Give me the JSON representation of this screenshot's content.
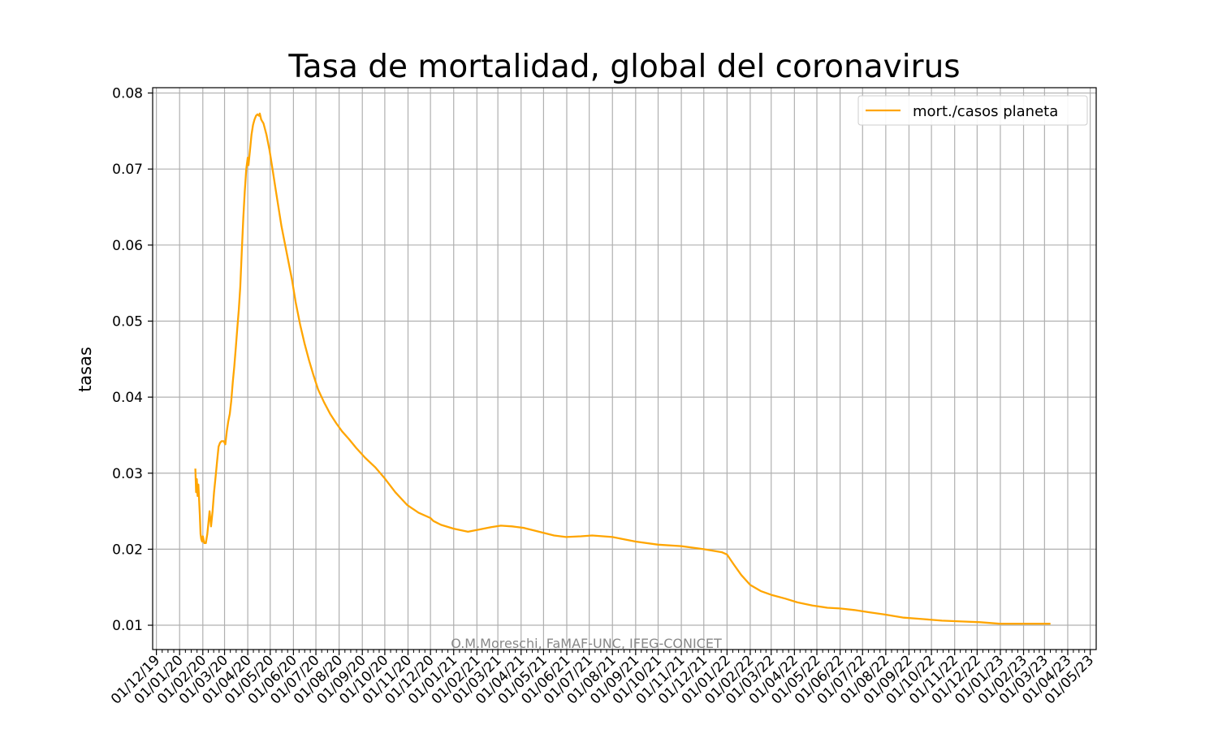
{
  "chart_data": {
    "type": "line",
    "title": "Tasa de mortalidad, global del coronavirus",
    "xlabel": "",
    "ylabel": "tasas",
    "watermark": "O.M.Moreschi, FaMAF-UNC, IFEG-CONICET",
    "grid": true,
    "legend_position": "top-right",
    "x_tick_labels": [
      "01/12/19",
      "01/01/20",
      "01/02/20",
      "01/03/20",
      "01/04/20",
      "01/05/20",
      "01/06/20",
      "01/07/20",
      "01/08/20",
      "01/09/20",
      "01/10/20",
      "01/11/20",
      "01/12/20",
      "01/01/21",
      "01/02/21",
      "01/03/21",
      "01/04/21",
      "01/05/21",
      "01/06/21",
      "01/07/21",
      "01/08/21",
      "01/09/21",
      "01/10/21",
      "01/11/21",
      "01/12/21",
      "01/01/22",
      "01/02/22",
      "01/03/22",
      "01/04/22",
      "01/05/22",
      "01/06/22",
      "01/07/22",
      "01/08/22",
      "01/09/22",
      "01/10/22",
      "01/11/22",
      "01/12/22",
      "01/01/23",
      "01/02/23",
      "01/03/23",
      "01/04/23",
      "01/05/23"
    ],
    "y_ticks": [
      0.01,
      0.02,
      0.03,
      0.04,
      0.05,
      0.06,
      0.07,
      0.08
    ],
    "y_tick_labels": [
      "0.01",
      "0.02",
      "0.03",
      "0.04",
      "0.05",
      "0.06",
      "0.07",
      "0.08"
    ],
    "xlim": [
      "2019-11-26",
      "2023-05-09"
    ],
    "ylim": [
      0.0068,
      0.0807
    ],
    "series": [
      {
        "name": "mort./casos planeta",
        "color": "#ffa500",
        "points": [
          [
            "2020-01-22",
            0.0306
          ],
          [
            "2020-01-23",
            0.0275
          ],
          [
            "2020-01-24",
            0.0292
          ],
          [
            "2020-01-25",
            0.027
          ],
          [
            "2020-01-26",
            0.0285
          ],
          [
            "2020-01-28",
            0.0245
          ],
          [
            "2020-01-29",
            0.022
          ],
          [
            "2020-01-30",
            0.0213
          ],
          [
            "2020-01-31",
            0.021
          ],
          [
            "2020-02-01",
            0.0217
          ],
          [
            "2020-02-03",
            0.0208
          ],
          [
            "2020-02-05",
            0.0208
          ],
          [
            "2020-02-07",
            0.022
          ],
          [
            "2020-02-09",
            0.024
          ],
          [
            "2020-02-10",
            0.025
          ],
          [
            "2020-02-12",
            0.023
          ],
          [
            "2020-02-14",
            0.025
          ],
          [
            "2020-02-16",
            0.0275
          ],
          [
            "2020-02-18",
            0.0295
          ],
          [
            "2020-02-20",
            0.0315
          ],
          [
            "2020-02-22",
            0.0335
          ],
          [
            "2020-02-24",
            0.034
          ],
          [
            "2020-02-26",
            0.0342
          ],
          [
            "2020-02-29",
            0.0342
          ],
          [
            "2020-03-02",
            0.0338
          ],
          [
            "2020-03-04",
            0.0355
          ],
          [
            "2020-03-06",
            0.0368
          ],
          [
            "2020-03-08",
            0.0378
          ],
          [
            "2020-03-10",
            0.0395
          ],
          [
            "2020-03-12",
            0.042
          ],
          [
            "2020-03-14",
            0.044
          ],
          [
            "2020-03-16",
            0.0465
          ],
          [
            "2020-03-18",
            0.049
          ],
          [
            "2020-03-20",
            0.0515
          ],
          [
            "2020-03-22",
            0.0545
          ],
          [
            "2020-03-24",
            0.059
          ],
          [
            "2020-03-26",
            0.0635
          ],
          [
            "2020-03-28",
            0.067
          ],
          [
            "2020-03-30",
            0.07
          ],
          [
            "2020-04-01",
            0.0715
          ],
          [
            "2020-04-02",
            0.0705
          ],
          [
            "2020-04-04",
            0.0725
          ],
          [
            "2020-04-06",
            0.0745
          ],
          [
            "2020-04-08",
            0.0758
          ],
          [
            "2020-04-10",
            0.0765
          ],
          [
            "2020-04-12",
            0.077
          ],
          [
            "2020-04-14",
            0.0772
          ],
          [
            "2020-04-16",
            0.077
          ],
          [
            "2020-04-17",
            0.0773
          ],
          [
            "2020-04-19",
            0.0765
          ],
          [
            "2020-04-22",
            0.076
          ],
          [
            "2020-04-26",
            0.0745
          ],
          [
            "2020-04-30",
            0.0725
          ],
          [
            "2020-05-04",
            0.07
          ],
          [
            "2020-05-08",
            0.0675
          ],
          [
            "2020-05-12",
            0.065
          ],
          [
            "2020-05-16",
            0.0625
          ],
          [
            "2020-05-20",
            0.0605
          ],
          [
            "2020-05-25",
            0.058
          ],
          [
            "2020-05-30",
            0.0555
          ],
          [
            "2020-06-04",
            0.0525
          ],
          [
            "2020-06-10",
            0.0495
          ],
          [
            "2020-06-16",
            0.047
          ],
          [
            "2020-06-22",
            0.0448
          ],
          [
            "2020-06-28",
            0.0428
          ],
          [
            "2020-07-04",
            0.041
          ],
          [
            "2020-07-12",
            0.0393
          ],
          [
            "2020-07-20",
            0.0378
          ],
          [
            "2020-07-28",
            0.0366
          ],
          [
            "2020-08-05",
            0.0355
          ],
          [
            "2020-08-14",
            0.0345
          ],
          [
            "2020-08-24",
            0.0333
          ],
          [
            "2020-09-05",
            0.032
          ],
          [
            "2020-09-18",
            0.0308
          ],
          [
            "2020-10-01",
            0.0293
          ],
          [
            "2020-10-15",
            0.0275
          ],
          [
            "2020-10-31",
            0.0258
          ],
          [
            "2020-11-15",
            0.0248
          ],
          [
            "2020-12-01",
            0.0241
          ],
          [
            "2020-12-05",
            0.0237
          ],
          [
            "2020-12-15",
            0.0232
          ],
          [
            "2021-01-01",
            0.0227
          ],
          [
            "2021-01-20",
            0.0223
          ],
          [
            "2021-02-05",
            0.0226
          ],
          [
            "2021-02-20",
            0.0229
          ],
          [
            "2021-03-05",
            0.0231
          ],
          [
            "2021-03-20",
            0.023
          ],
          [
            "2021-04-05",
            0.0228
          ],
          [
            "2021-04-25",
            0.0223
          ],
          [
            "2021-05-15",
            0.0218
          ],
          [
            "2021-05-31",
            0.0216
          ],
          [
            "2021-06-20",
            0.0217
          ],
          [
            "2021-07-05",
            0.0218
          ],
          [
            "2021-08-01",
            0.0216
          ],
          [
            "2021-09-01",
            0.021
          ],
          [
            "2021-10-01",
            0.0206
          ],
          [
            "2021-11-01",
            0.0204
          ],
          [
            "2021-12-01",
            0.02
          ],
          [
            "2021-12-25",
            0.0196
          ],
          [
            "2022-01-01",
            0.0193
          ],
          [
            "2022-01-10",
            0.018
          ],
          [
            "2022-01-20",
            0.0166
          ],
          [
            "2022-02-01",
            0.0153
          ],
          [
            "2022-02-15",
            0.0145
          ],
          [
            "2022-03-01",
            0.014
          ],
          [
            "2022-03-20",
            0.0135
          ],
          [
            "2022-04-05",
            0.013
          ],
          [
            "2022-04-25",
            0.0126
          ],
          [
            "2022-05-15",
            0.0123
          ],
          [
            "2022-06-01",
            0.0122
          ],
          [
            "2022-06-20",
            0.012
          ],
          [
            "2022-07-10",
            0.0117
          ],
          [
            "2022-07-31",
            0.0114
          ],
          [
            "2022-08-25",
            0.011
          ],
          [
            "2022-09-20",
            0.0108
          ],
          [
            "2022-10-15",
            0.0106
          ],
          [
            "2022-11-10",
            0.0105
          ],
          [
            "2022-12-05",
            0.0104
          ],
          [
            "2022-12-31",
            0.0102
          ],
          [
            "2023-01-15",
            0.0102
          ],
          [
            "2023-02-10",
            0.0102
          ],
          [
            "2023-03-09",
            0.0102
          ]
        ]
      }
    ]
  }
}
